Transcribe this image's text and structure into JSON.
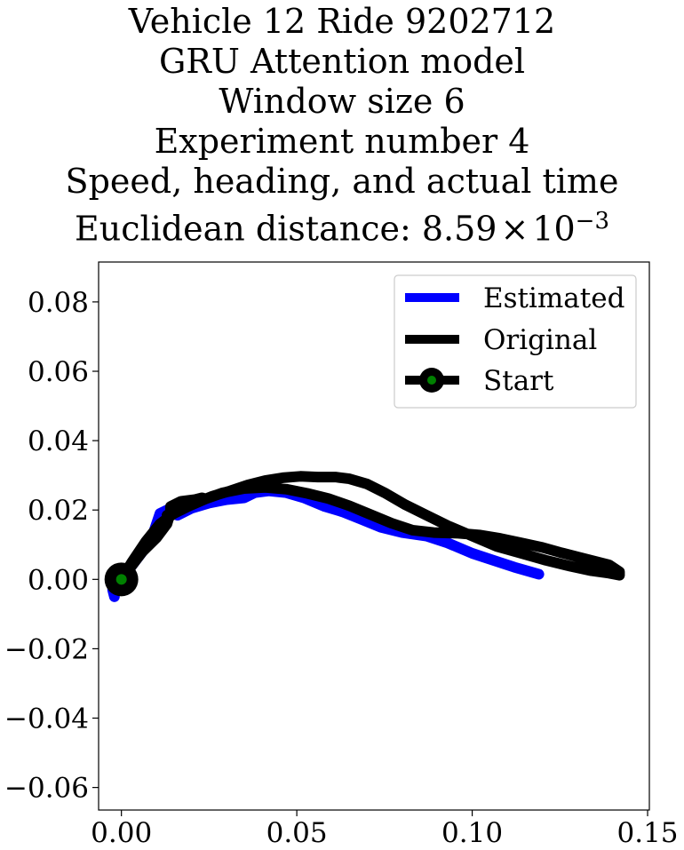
{
  "title_lines": [
    "Vehicle 12 Ride 9202712",
    "GRU Attention model",
    "Window size 6",
    "Experiment number 4",
    "Speed, heading, and actual time"
  ],
  "title_distance": {
    "prefix": "Euclidean distance: 8.59",
    "times": "×",
    "base": "10",
    "exponent": "−3"
  },
  "colors": {
    "estimated": "#0000ff",
    "original": "#000000",
    "start_marker": "#008000"
  },
  "chart_data": {
    "type": "line",
    "title": "Vehicle 12 Ride 9202712 / GRU Attention model / Window size 6 / Experiment number 4 / Speed, heading, and actual time / Euclidean distance: 8.59×10^-3",
    "xlabel": "",
    "ylabel": "",
    "xlim": [
      -0.0065,
      0.1505
    ],
    "ylim": [
      -0.0665,
      0.0915
    ],
    "xticks": [
      0.0,
      0.05,
      0.1,
      0.15
    ],
    "xtick_labels": [
      "0.00",
      "0.05",
      "0.10",
      "0.15"
    ],
    "yticks": [
      0.08,
      0.06,
      0.04,
      0.02,
      0.0,
      -0.02,
      -0.04,
      -0.06
    ],
    "ytick_labels": [
      "0.08",
      "0.06",
      "0.04",
      "0.02",
      "0.00",
      "−0.02",
      "−0.04",
      "−0.06"
    ],
    "grid": false,
    "legend": "top-right",
    "series": [
      {
        "name": "Estimated",
        "color": "#0000ff",
        "points": [
          [
            -0.002,
            -0.005
          ],
          [
            -0.0025,
            -0.003
          ],
          [
            0.0,
            0.0
          ],
          [
            0.003,
            0.004
          ],
          [
            0.006,
            0.008
          ],
          [
            0.009,
            0.013
          ],
          [
            0.011,
            0.019
          ],
          [
            0.013,
            0.02
          ],
          [
            0.016,
            0.0185
          ],
          [
            0.02,
            0.0205
          ],
          [
            0.025,
            0.022
          ],
          [
            0.03,
            0.023
          ],
          [
            0.035,
            0.0235
          ],
          [
            0.038,
            0.025
          ],
          [
            0.042,
            0.0255
          ],
          [
            0.047,
            0.025
          ],
          [
            0.052,
            0.0235
          ],
          [
            0.058,
            0.021
          ],
          [
            0.063,
            0.0195
          ],
          [
            0.068,
            0.0175
          ],
          [
            0.074,
            0.015
          ],
          [
            0.08,
            0.0135
          ],
          [
            0.087,
            0.0125
          ],
          [
            0.093,
            0.0105
          ],
          [
            0.1,
            0.0075
          ],
          [
            0.106,
            0.0055
          ],
          [
            0.112,
            0.0035
          ],
          [
            0.119,
            0.0015
          ]
        ]
      },
      {
        "name": "Original",
        "color": "#000000",
        "points": [
          [
            0.0,
            0.0
          ],
          [
            0.003,
            0.004
          ],
          [
            0.006,
            0.008
          ],
          [
            0.01,
            0.012
          ],
          [
            0.013,
            0.016
          ],
          [
            0.014,
            0.0195
          ],
          [
            0.014,
            0.021
          ],
          [
            0.017,
            0.0225
          ],
          [
            0.021,
            0.023
          ],
          [
            0.023,
            0.0235
          ],
          [
            0.024,
            0.0232
          ],
          [
            0.022,
            0.0225
          ],
          [
            0.019,
            0.0215
          ],
          [
            0.016,
            0.0205
          ],
          [
            0.013,
            0.0185
          ],
          [
            0.017,
            0.02
          ],
          [
            0.021,
            0.022
          ],
          [
            0.026,
            0.024
          ],
          [
            0.031,
            0.0255
          ],
          [
            0.036,
            0.0272
          ],
          [
            0.041,
            0.0285
          ],
          [
            0.046,
            0.0293
          ],
          [
            0.051,
            0.0297
          ],
          [
            0.056,
            0.0295
          ],
          [
            0.061,
            0.0295
          ],
          [
            0.065,
            0.029
          ],
          [
            0.07,
            0.0275
          ],
          [
            0.075,
            0.025
          ],
          [
            0.081,
            0.0215
          ],
          [
            0.087,
            0.0185
          ],
          [
            0.093,
            0.0155
          ],
          [
            0.1,
            0.0125
          ],
          [
            0.107,
            0.0095
          ],
          [
            0.114,
            0.0075
          ],
          [
            0.121,
            0.0055
          ],
          [
            0.128,
            0.0038
          ],
          [
            0.134,
            0.0025
          ],
          [
            0.139,
            0.0018
          ],
          [
            0.142,
            0.0012
          ],
          [
            0.142,
            0.0022
          ],
          [
            0.139,
            0.0042
          ],
          [
            0.135,
            0.0052
          ],
          [
            0.13,
            0.0065
          ],
          [
            0.125,
            0.0078
          ],
          [
            0.12,
            0.0092
          ],
          [
            0.114,
            0.0105
          ],
          [
            0.108,
            0.0118
          ],
          [
            0.102,
            0.0128
          ],
          [
            0.096,
            0.0133
          ],
          [
            0.089,
            0.0135
          ],
          [
            0.083,
            0.0142
          ],
          [
            0.077,
            0.0162
          ],
          [
            0.071,
            0.0187
          ],
          [
            0.065,
            0.0212
          ],
          [
            0.059,
            0.0233
          ],
          [
            0.053,
            0.0248
          ],
          [
            0.047,
            0.026
          ],
          [
            0.041,
            0.0265
          ],
          [
            0.035,
            0.0262
          ],
          [
            0.029,
            0.025
          ],
          [
            0.024,
            0.0232
          ],
          [
            0.019,
            0.021
          ],
          [
            0.015,
            0.019
          ],
          [
            0.011,
            0.016
          ],
          [
            0.007,
            0.011
          ],
          [
            0.003,
            0.005
          ],
          [
            0.0,
            0.0
          ]
        ]
      }
    ],
    "start_point": {
      "name": "Start",
      "x": 0.0,
      "y": 0.0
    }
  }
}
